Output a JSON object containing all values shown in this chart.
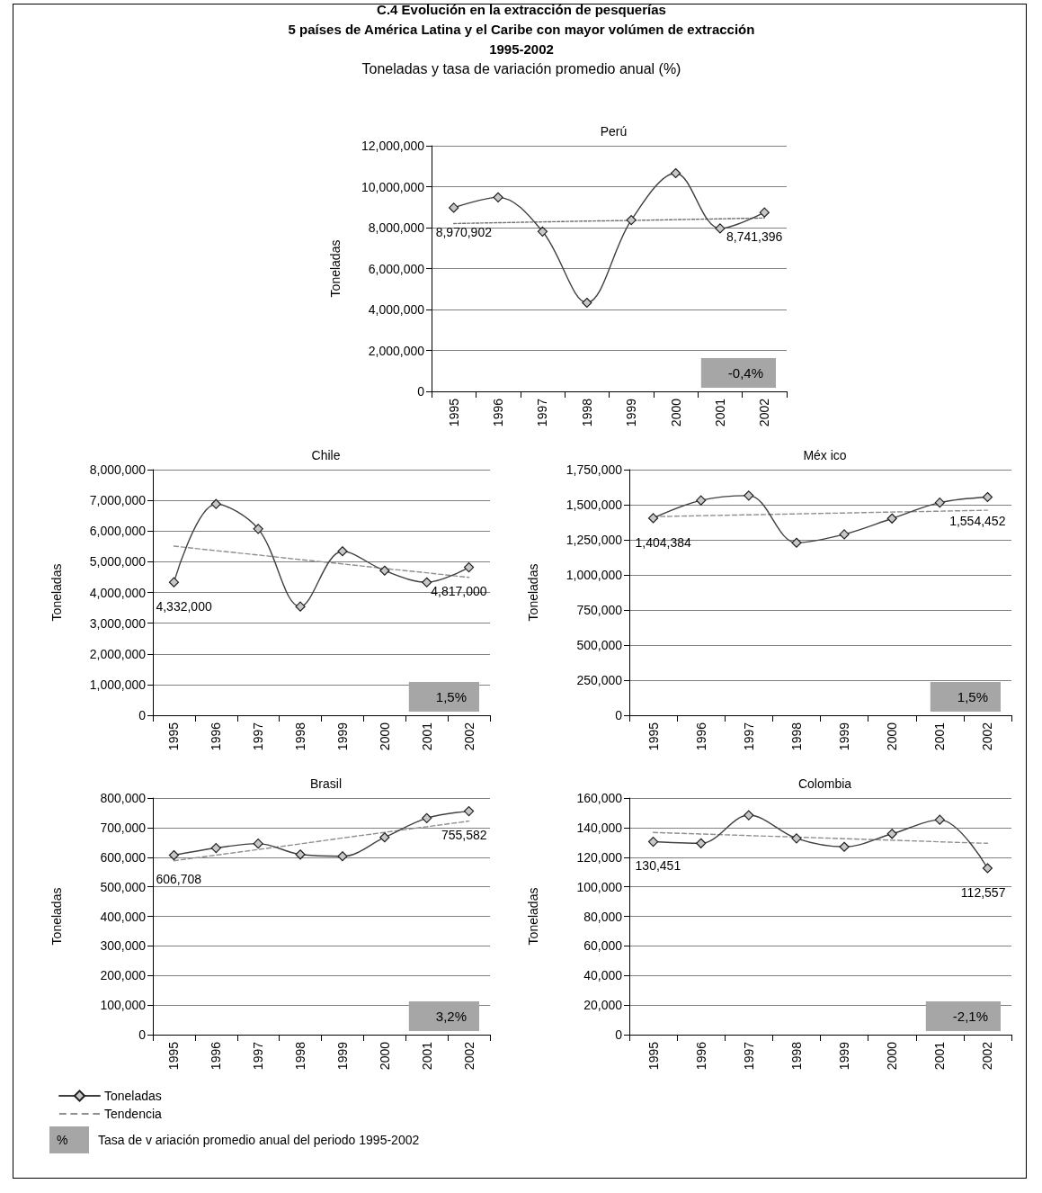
{
  "chart_data": [
    {
      "type": "other",
      "title": "C.4 Evolución en la extracción de pesquerías\n5 países de América Latina y el Caribe con mayor volúmen de extracción\n1995-2002",
      "subtitle": "Toneladas y tasa de variación promedio anual (%)"
    },
    {
      "type": "line",
      "title": "Perú",
      "ylabel": "Toneladas",
      "categories": [
        "1995",
        "1996",
        "1997",
        "1998",
        "1999",
        "2000",
        "2001",
        "2002"
      ],
      "ylim": [
        0,
        12000000
      ],
      "yticks": [
        {
          "value": 0,
          "label": "0"
        },
        {
          "value": 2000000,
          "label": "2,000,000"
        },
        {
          "value": 4000000,
          "label": "4,000,000"
        },
        {
          "value": 6000000,
          "label": "6,000,000"
        },
        {
          "value": 8000000,
          "label": "8,000,000"
        },
        {
          "value": 10000000,
          "label": "10,000,000"
        },
        {
          "value": 12000000,
          "label": "12,000,000"
        }
      ],
      "grid": "y",
      "annotations": [
        "-0,4%"
      ],
      "series": [
        {
          "color": "#404040",
          "marker": "diamond",
          "line_style": "solid",
          "values": [
            8970902,
            9480000,
            7810000,
            4330000,
            8370000,
            10660000,
            7960000,
            8741396
          ],
          "value_labels": [
            "8,970,902",
            null,
            null,
            null,
            null,
            null,
            null,
            "8,741,396"
          ]
        },
        {
          "color": "#707070",
          "marker": "none",
          "line_style": "dotted",
          "values": [
            8200000,
            8240000,
            8280000,
            8320000,
            8350000,
            8390000,
            8430000,
            8470000
          ]
        }
      ]
    },
    {
      "type": "line",
      "title": "Chile",
      "ylabel": "Toneladas",
      "categories": [
        "1995",
        "1996",
        "1997",
        "1998",
        "1999",
        "2000",
        "2001",
        "2002"
      ],
      "ylim": [
        0,
        8000000
      ],
      "yticks": [
        {
          "value": 0,
          "label": "0"
        },
        {
          "value": 1000000,
          "label": "1,000,000"
        },
        {
          "value": 2000000,
          "label": "2,000,000"
        },
        {
          "value": 3000000,
          "label": "3,000,000"
        },
        {
          "value": 4000000,
          "label": "4,000,000"
        },
        {
          "value": 5000000,
          "label": "5,000,000"
        },
        {
          "value": 6000000,
          "label": "6,000,000"
        },
        {
          "value": 7000000,
          "label": "7,000,000"
        },
        {
          "value": 8000000,
          "label": "8,000,000"
        }
      ],
      "grid": "y",
      "annotations": [
        "1,5%"
      ],
      "series": [
        {
          "color": "#404040",
          "marker": "diamond",
          "line_style": "solid",
          "values": [
            4332000,
            6880000,
            6070000,
            3540000,
            5340000,
            4710000,
            4330000,
            4817000
          ],
          "value_labels": [
            "4,332,000",
            null,
            null,
            null,
            null,
            null,
            null,
            "4,817,000"
          ]
        },
        {
          "color": "#909090",
          "marker": "none",
          "line_style": "dashed",
          "values": [
            5510000,
            5360000,
            5220000,
            5070000,
            4930000,
            4780000,
            4640000,
            4490000
          ]
        }
      ]
    },
    {
      "type": "line",
      "title": "Méx ico",
      "ylabel": "Toneladas",
      "categories": [
        "1995",
        "1996",
        "1997",
        "1998",
        "1999",
        "2000",
        "2001",
        "2002"
      ],
      "ylim": [
        0,
        1750000
      ],
      "yticks": [
        {
          "value": 0,
          "label": "0"
        },
        {
          "value": 250000,
          "label": "250,000"
        },
        {
          "value": 500000,
          "label": "500,000"
        },
        {
          "value": 750000,
          "label": "750,000"
        },
        {
          "value": 1000000,
          "label": "1,000,000"
        },
        {
          "value": 1250000,
          "label": "1,250,000"
        },
        {
          "value": 1500000,
          "label": "1,500,000"
        },
        {
          "value": 1750000,
          "label": "1,750,000"
        }
      ],
      "grid": "y",
      "annotations": [
        "1,5%"
      ],
      "series": [
        {
          "color": "#404040",
          "marker": "diamond",
          "line_style": "solid",
          "values": [
            1404384,
            1531000,
            1565000,
            1229000,
            1289000,
            1402000,
            1515000,
            1554452
          ],
          "value_labels": [
            "1,404,384",
            null,
            null,
            null,
            null,
            null,
            null,
            "1,554,452"
          ]
        },
        {
          "color": "#909090",
          "marker": "none",
          "line_style": "dashed",
          "values": [
            1415000,
            1422000,
            1428000,
            1435000,
            1441000,
            1448000,
            1454000,
            1461000
          ]
        }
      ]
    },
    {
      "type": "line",
      "title": "Brasil",
      "ylabel": "Toneladas",
      "categories": [
        "1995",
        "1996",
        "1997",
        "1998",
        "1999",
        "2000",
        "2001",
        "2002"
      ],
      "ylim": [
        0,
        800000
      ],
      "yticks": [
        {
          "value": 0,
          "label": "0"
        },
        {
          "value": 100000,
          "label": "100,000"
        },
        {
          "value": 200000,
          "label": "200,000"
        },
        {
          "value": 300000,
          "label": "300,000"
        },
        {
          "value": 400000,
          "label": "400,000"
        },
        {
          "value": 500000,
          "label": "500,000"
        },
        {
          "value": 600000,
          "label": "600,000"
        },
        {
          "value": 700000,
          "label": "700,000"
        },
        {
          "value": 800000,
          "label": "800,000"
        }
      ],
      "grid": "y",
      "legend": "bottom left",
      "annotations": [
        "3,2%"
      ],
      "series": [
        {
          "name": "Toneladas",
          "color": "#404040",
          "marker": "diamond",
          "line_style": "solid",
          "values": [
            606708,
            631000,
            646000,
            609000,
            603000,
            667000,
            732000,
            755582
          ],
          "value_labels": [
            "606,708",
            null,
            null,
            null,
            null,
            null,
            null,
            "755,582"
          ]
        },
        {
          "name": "Tendencia",
          "color": "#909090",
          "marker": "none",
          "line_style": "dashed",
          "values": [
            588000,
            607000,
            626000,
            645000,
            665000,
            684000,
            703000,
            722000
          ]
        }
      ]
    },
    {
      "type": "line",
      "title": "Colombia",
      "ylabel": "Toneladas",
      "categories": [
        "1995",
        "1996",
        "1997",
        "1998",
        "1999",
        "2000",
        "2001",
        "2002"
      ],
      "ylim": [
        0,
        160000
      ],
      "yticks": [
        {
          "value": 0,
          "label": "0"
        },
        {
          "value": 20000,
          "label": "20,000"
        },
        {
          "value": 40000,
          "label": "40,000"
        },
        {
          "value": 60000,
          "label": "60,000"
        },
        {
          "value": 80000,
          "label": "80,000"
        },
        {
          "value": 100000,
          "label": "100,000"
        },
        {
          "value": 120000,
          "label": "120,000"
        },
        {
          "value": 140000,
          "label": "140,000"
        },
        {
          "value": 160000,
          "label": "160,000"
        }
      ],
      "grid": "y",
      "annotations": [
        "-2,1%"
      ],
      "series": [
        {
          "color": "#404040",
          "marker": "diamond",
          "line_style": "solid",
          "values": [
            130451,
            129400,
            148400,
            132700,
            127000,
            135800,
            145300,
            112557
          ],
          "value_labels": [
            "130,451",
            null,
            null,
            null,
            null,
            null,
            null,
            "112,557"
          ]
        },
        {
          "color": "#909090",
          "marker": "none",
          "line_style": "dashed",
          "values": [
            136700,
            135700,
            134600,
            133600,
            132500,
            131500,
            130400,
            129400
          ]
        }
      ]
    },
    {
      "type": "other",
      "annotations": [
        "%",
        "Tasa de v ariación promedio anual del periodo 1995-2002"
      ]
    }
  ]
}
